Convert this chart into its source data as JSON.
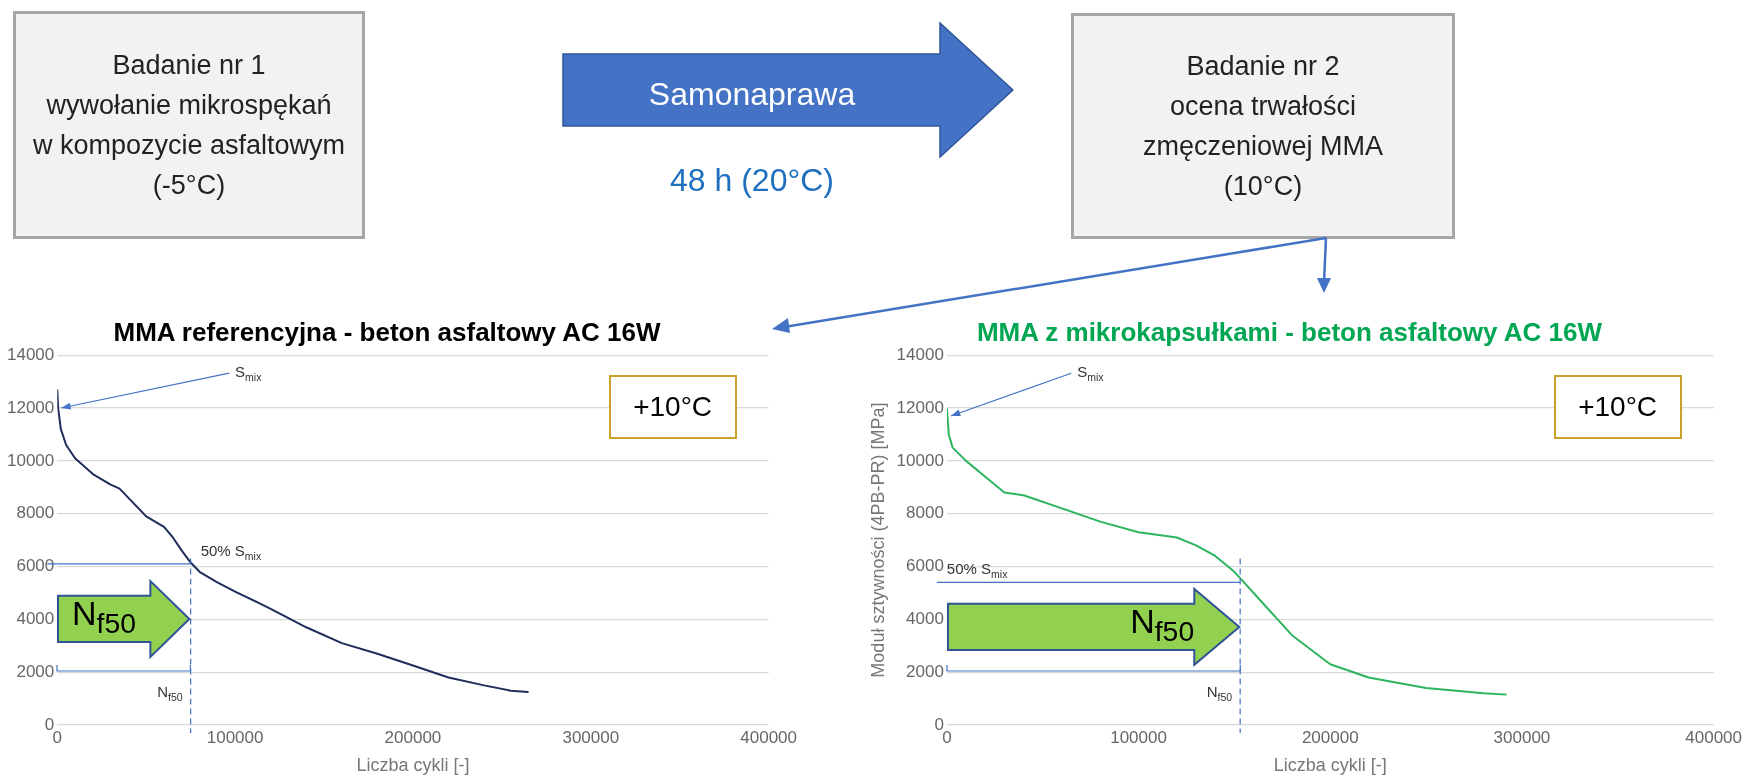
{
  "chart_data": [
    {
      "type": "other",
      "annotations": [
        "Badanie nr 1\nwywołanie mikrospękań\nw kompozycie asfaltowym\n(-5°C)",
        "Samonaprawa",
        "48 h (20°C)",
        "Badanie nr 2\nocena trwałości\nzmęczeniowej MMA\n(10°C)"
      ]
    },
    {
      "type": "line",
      "title": "MMA referencyjna - beton asfaltowy AC 16W",
      "xlabel": "Liczba cykli [-]",
      "x": [
        0,
        500,
        2000,
        5000,
        10000,
        20000,
        30000,
        35000,
        40000,
        50000,
        60000,
        65000,
        70000,
        75000,
        80000,
        90000,
        100000,
        120000,
        140000,
        160000,
        180000,
        200000,
        220000,
        240000,
        255000,
        265000
      ],
      "series": [
        {
          "color": "#1f2d5a",
          "values": [
            12700,
            12000,
            11200,
            10600,
            10100,
            9500,
            9100,
            8950,
            8600,
            7900,
            7500,
            7100,
            6600,
            6150,
            5800,
            5400,
            5050,
            4400,
            3700,
            3100,
            2700,
            2250,
            1800,
            1500,
            1300,
            1250
          ]
        }
      ],
      "xlim": [
        0,
        400000
      ],
      "xticks": [
        0,
        100000,
        200000,
        300000,
        400000
      ],
      "ylim": [
        0,
        14000
      ],
      "yticks": [
        0,
        2000,
        4000,
        6000,
        8000,
        10000,
        12000,
        14000
      ],
      "grid": "y",
      "legend": false,
      "marker": "none",
      "ref_lines": [
        {
          "axis": "y",
          "value": 6100,
          "label": "50% S$_{mix}$"
        },
        {
          "axis": "x",
          "value": 75000,
          "label": "N$_{f50}$",
          "line_style": "dashed"
        }
      ],
      "annotations": [
        "+10°C",
        {
          "text": "N$_{f50}$",
          "x": 75000,
          "y": 4000
        },
        {
          "text": "S$_{mix}$",
          "x": 0,
          "y": 12000
        }
      ]
    },
    {
      "type": "line",
      "title": "MMA z mikrokapsułkami - beton asfaltowy AC 16W",
      "xlabel": "Liczba cykli [-]",
      "ylabel": "Moduł sztywności (4PB-PR) [MPa]",
      "x": [
        0,
        1000,
        3000,
        10000,
        20000,
        30000,
        40000,
        60000,
        80000,
        100000,
        120000,
        130000,
        140000,
        150000,
        155000,
        165000,
        180000,
        200000,
        220000,
        250000,
        280000,
        292000
      ],
      "series": [
        {
          "color": "#2db55d",
          "values": [
            12000,
            11000,
            10500,
            10000,
            9400,
            8800,
            8700,
            8200,
            7700,
            7300,
            7100,
            6800,
            6400,
            5800,
            5400,
            4600,
            3400,
            2300,
            1800,
            1400,
            1200,
            1150
          ]
        }
      ],
      "xlim": [
        0,
        400000
      ],
      "xticks": [
        0,
        100000,
        200000,
        300000,
        400000
      ],
      "ylim": [
        0,
        14000
      ],
      "yticks": [
        0,
        2000,
        4000,
        6000,
        8000,
        10000,
        12000,
        14000
      ],
      "grid": "y",
      "legend": false,
      "marker": "none",
      "ref_lines": [
        {
          "axis": "y",
          "value": 5400,
          "label": "50% S$_{mix}$"
        },
        {
          "axis": "x",
          "value": 153000,
          "label": "N$_{f50}$",
          "line_style": "dashed"
        }
      ],
      "annotations": [
        "+10°C",
        {
          "text": "N$_{f50}$",
          "x": 153000,
          "y": 3700
        },
        {
          "text": "S$_{mix}$",
          "x": 0,
          "y": 11700
        }
      ]
    }
  ]
}
